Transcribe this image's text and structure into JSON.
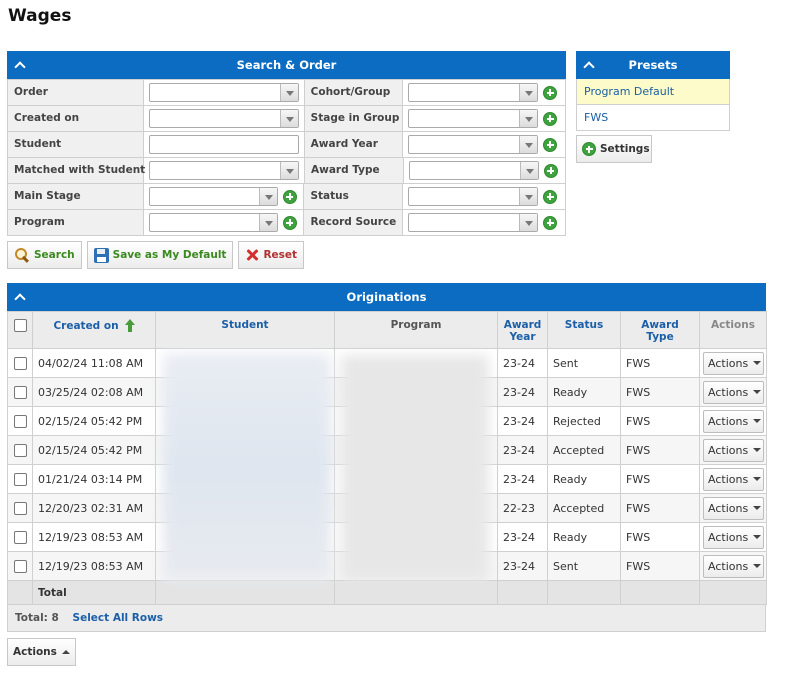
{
  "page": {
    "title": "Wages"
  },
  "search": {
    "header": "Search & Order",
    "rows": [
      {
        "left_label": "Order",
        "left_type": "select",
        "right_label": "Cohort/Group"
      },
      {
        "left_label": "Created on",
        "left_type": "select",
        "right_label": "Stage in Group"
      },
      {
        "left_label": "Student",
        "left_type": "text",
        "right_label": "Award Year"
      },
      {
        "left_label": "Matched with Student",
        "left_type": "select",
        "right_label": "Award Type"
      },
      {
        "left_label": "Main Stage",
        "left_type": "select-plus",
        "right_label": "Status"
      },
      {
        "left_label": "Program",
        "left_type": "select-plus",
        "right_label": "Record Source"
      }
    ],
    "buttons": {
      "search": "Search",
      "save_default": "Save as My Default",
      "reset": "Reset"
    }
  },
  "presets": {
    "header": "Presets",
    "items": [
      {
        "label": "Program Default",
        "active": true
      },
      {
        "label": "FWS",
        "active": false
      }
    ],
    "settings": "Settings"
  },
  "originations": {
    "header": "Originations",
    "columns": {
      "created_on": "Created on",
      "student": "Student",
      "program": "Program",
      "award_year_1": "Award",
      "award_year_2": "Year",
      "status": "Status",
      "award_type": "Award Type",
      "actions": "Actions"
    },
    "rows": [
      {
        "created_on": "04/02/24 11:08 AM",
        "award_year": "23-24",
        "status": "Sent",
        "award_type": "FWS",
        "action": "Actions"
      },
      {
        "created_on": "03/25/24 02:08 AM",
        "award_year": "23-24",
        "status": "Ready",
        "award_type": "FWS",
        "action": "Actions"
      },
      {
        "created_on": "02/15/24 05:42 PM",
        "award_year": "23-24",
        "status": "Rejected",
        "award_type": "FWS",
        "action": "Actions"
      },
      {
        "created_on": "02/15/24 05:42 PM",
        "award_year": "23-24",
        "status": "Accepted",
        "award_type": "FWS",
        "action": "Actions"
      },
      {
        "created_on": "01/21/24 03:14 PM",
        "award_year": "23-24",
        "status": "Ready",
        "award_type": "FWS",
        "action": "Actions"
      },
      {
        "created_on": "12/20/23 02:31 AM",
        "award_year": "22-23",
        "status": "Accepted",
        "award_type": "FWS",
        "action": "Actions"
      },
      {
        "created_on": "12/19/23 08:53 AM",
        "award_year": "23-24",
        "status": "Ready",
        "award_type": "FWS",
        "action": "Actions"
      },
      {
        "created_on": "12/19/23 08:53 AM",
        "award_year": "23-24",
        "status": "Sent",
        "award_type": "FWS",
        "action": "Actions"
      }
    ],
    "total_label": "Total",
    "footer_total": "Total: 8",
    "select_all": "Select All Rows"
  },
  "bottom_actions": "Actions",
  "colors": {
    "header_blue": "#0b6cc1",
    "link_blue": "#1a5fa8",
    "preset_active": "#fdfbc9"
  }
}
